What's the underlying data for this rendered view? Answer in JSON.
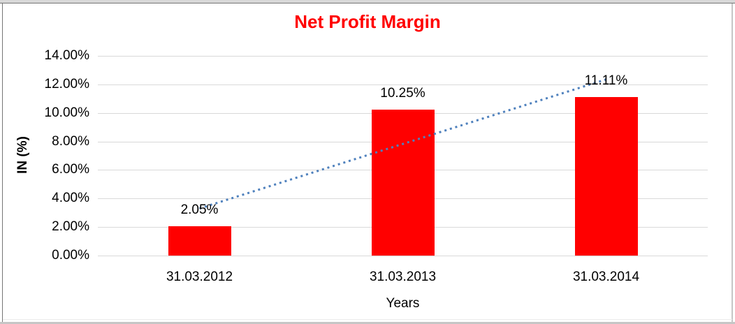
{
  "chart_data": {
    "type": "bar",
    "title": "Net Profit Margin",
    "title_color": "#ff0000",
    "xlabel": "Years",
    "ylabel": "IN (%)",
    "categories": [
      "31.03.2012",
      "31.03.2013",
      "31.03.2014"
    ],
    "values": [
      2.05,
      10.25,
      11.11
    ],
    "data_labels": [
      "2.05%",
      "10.25%",
      "11.11%"
    ],
    "bar_color": "#ff0000",
    "ylim": [
      0,
      14
    ],
    "ytick_step": 2,
    "ytick_labels": [
      "0.00%",
      "2.00%",
      "4.00%",
      "6.00%",
      "8.00%",
      "10.00%",
      "12.00%",
      "14.00%"
    ],
    "grid": true,
    "gridline_color": "#d9d9d9",
    "legend": "none",
    "trendline": {
      "type": "linear",
      "style": "dotted",
      "color": "#4f81bd",
      "start_value": 3.3,
      "end_value": 12.35
    }
  }
}
